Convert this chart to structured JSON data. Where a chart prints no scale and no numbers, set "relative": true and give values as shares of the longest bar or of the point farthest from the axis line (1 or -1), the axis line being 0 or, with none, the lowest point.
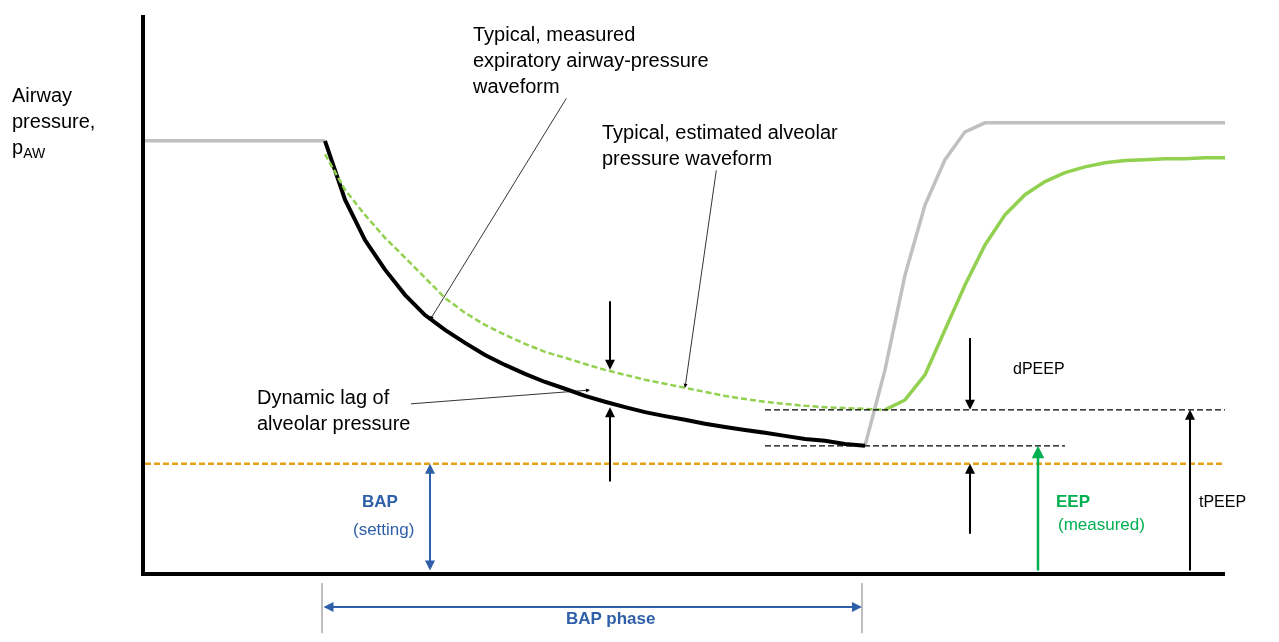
{
  "chart_data": {
    "type": "line",
    "relative": true,
    "categories": [
      null,
      null,
      null,
      null,
      null,
      null,
      null,
      null,
      null,
      null,
      null,
      null,
      null,
      null,
      null,
      null,
      null,
      null,
      null,
      null,
      null,
      null,
      null,
      null,
      null,
      null,
      null,
      null,
      null,
      null,
      null,
      null,
      null,
      null,
      null,
      null,
      null,
      null,
      null,
      null,
      null,
      null,
      null,
      null,
      null,
      null,
      null,
      null,
      null,
      null,
      null,
      null,
      null,
      null,
      null
    ],
    "ylabel": "Airway\npressure,\np$_{AW}$",
    "annotations": [
      "Typical, measured\nexpiratory airway-pressure\nwaveform",
      "Typical, estimated alveolar\npressure waveform",
      "Dynamic lag of\nalveolar pressure",
      "dPEEP",
      "tPEEP",
      "BAP",
      "(setting)",
      "EEP",
      "(measured)",
      "BAP phase"
    ],
    "ref_lines": [
      {
        "axis": "y",
        "value": 0.241,
        "color": "#e6a118",
        "line_style": "dashed"
      }
    ],
    "series": [
      {
        "color": "#c0c0c0",
        "line_style": "solid",
        "values": [
          0.96,
          0.96,
          0.96,
          0.96,
          0.96,
          0.96,
          0.96,
          0.96,
          0.96,
          0.96,
          null,
          null,
          null,
          null,
          null,
          null,
          null,
          null,
          null,
          null,
          null,
          null,
          null,
          null,
          null,
          null,
          null,
          null,
          null,
          null,
          null,
          null,
          null,
          null,
          null,
          null,
          0.281,
          0.45,
          0.661,
          0.817,
          0.918,
          0.98,
          1.0,
          1.0,
          1.0,
          1.0,
          1.0,
          1.0,
          1.0,
          1.0,
          1.0,
          1.0,
          1.0,
          1.0,
          1.0
        ]
      },
      {
        "color": "#000000",
        "line_style": "solid",
        "values": [
          null,
          null,
          null,
          null,
          null,
          null,
          null,
          null,
          null,
          0.96,
          0.829,
          0.739,
          0.673,
          0.617,
          0.572,
          0.539,
          0.51,
          0.483,
          0.461,
          0.441,
          0.423,
          0.408,
          0.392,
          0.379,
          0.367,
          0.356,
          0.347,
          0.339,
          0.33,
          0.323,
          0.316,
          0.31,
          0.303,
          0.296,
          0.292,
          0.285,
          0.281,
          null,
          null,
          null,
          null,
          null,
          null,
          null,
          null,
          null,
          null,
          null,
          null,
          null,
          null,
          null,
          null,
          null,
          null
        ]
      },
      {
        "color": "#92d050",
        "line_style": "dashed",
        "values": [
          null,
          null,
          null,
          null,
          null,
          null,
          null,
          null,
          null,
          0.93,
          0.851,
          0.795,
          0.744,
          0.7,
          0.655,
          0.61,
          0.577,
          0.55,
          0.528,
          0.508,
          0.49,
          0.477,
          0.463,
          0.45,
          0.439,
          0.428,
          0.419,
          0.41,
          0.401,
          0.392,
          0.385,
          0.379,
          0.374,
          0.37,
          0.367,
          0.365,
          0.363,
          0.361,
          null,
          null,
          null,
          null,
          null,
          null,
          null,
          null,
          null,
          null,
          null,
          null,
          null,
          null,
          null,
          null,
          null
        ]
      },
      {
        "color": "#92d050",
        "line_style": "solid",
        "values": [
          null,
          null,
          null,
          null,
          null,
          null,
          null,
          null,
          null,
          null,
          null,
          null,
          null,
          null,
          null,
          null,
          null,
          null,
          null,
          null,
          null,
          null,
          null,
          null,
          null,
          null,
          null,
          null,
          null,
          null,
          null,
          null,
          null,
          null,
          null,
          null,
          null,
          0.361,
          0.383,
          0.439,
          0.539,
          0.639,
          0.728,
          0.795,
          0.84,
          0.869,
          0.889,
          0.902,
          0.911,
          0.916,
          0.918,
          0.92,
          0.92,
          0.922,
          0.922
        ]
      },
      {
        "color": "#000000",
        "line_style": "dashed",
        "values": [
          null,
          null,
          null,
          null,
          null,
          null,
          null,
          null,
          null,
          null,
          null,
          null,
          null,
          null,
          null,
          null,
          null,
          null,
          null,
          null,
          null,
          null,
          null,
          null,
          null,
          null,
          null,
          null,
          null,
          null,
          null,
          0.361,
          0.361,
          0.361,
          0.361,
          0.361,
          0.361,
          0.361,
          0.361,
          0.361,
          0.361,
          0.361,
          0.361,
          0.361,
          0.361,
          0.361,
          0.361,
          0.361,
          0.361,
          0.361,
          0.361,
          0.361,
          0.361,
          0.361,
          0.361
        ]
      },
      {
        "color": "#000000",
        "line_style": "dashed",
        "values": [
          null,
          null,
          null,
          null,
          null,
          null,
          null,
          null,
          null,
          null,
          null,
          null,
          null,
          null,
          null,
          null,
          null,
          null,
          null,
          null,
          null,
          null,
          null,
          null,
          null,
          null,
          null,
          null,
          null,
          null,
          null,
          0.281,
          0.281,
          0.281,
          0.281,
          0.281,
          0.281,
          0.281,
          0.281,
          0.281,
          0.281,
          0.281,
          0.281,
          0.281,
          0.281,
          0.281,
          0.281,
          null,
          null,
          null,
          null,
          null,
          null,
          null,
          null
        ]
      }
    ]
  }
}
